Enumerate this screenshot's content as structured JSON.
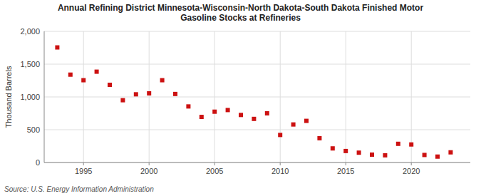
{
  "chart_data": {
    "type": "scatter",
    "title": "Annual Refining District Minnesota-Wisconsin-North Dakota-South Dakota Finished Motor\nGasoline Stocks at Refineries",
    "ylabel": "Thousand Barrels",
    "source": "Source: U.S. Energy Information Administration",
    "color": "#cc1111",
    "marker": "square",
    "grid": true,
    "x": [
      1993,
      1994,
      1995,
      1996,
      1997,
      1998,
      1999,
      2000,
      2001,
      2002,
      2003,
      2004,
      2005,
      2006,
      2007,
      2008,
      2009,
      2010,
      2011,
      2012,
      2013,
      2014,
      2015,
      2016,
      2017,
      2018,
      2019,
      2020,
      2021,
      2022,
      2023
    ],
    "values": [
      1755,
      1340,
      1255,
      1385,
      1185,
      950,
      1040,
      1055,
      1255,
      1045,
      855,
      695,
      775,
      800,
      725,
      665,
      750,
      420,
      580,
      635,
      370,
      215,
      175,
      150,
      120,
      110,
      285,
      275,
      115,
      90,
      155
    ],
    "xlim": [
      1992,
      2024.5
    ],
    "xticks": [
      1995,
      2000,
      2005,
      2010,
      2015,
      2020
    ],
    "ylim": [
      0,
      2000
    ],
    "yticks": [
      0,
      500,
      {
        "value": 1000,
        "label": "1,000"
      },
      {
        "value": 1500,
        "label": "1,500"
      },
      {
        "value": 2000,
        "label": "2,000"
      }
    ]
  }
}
